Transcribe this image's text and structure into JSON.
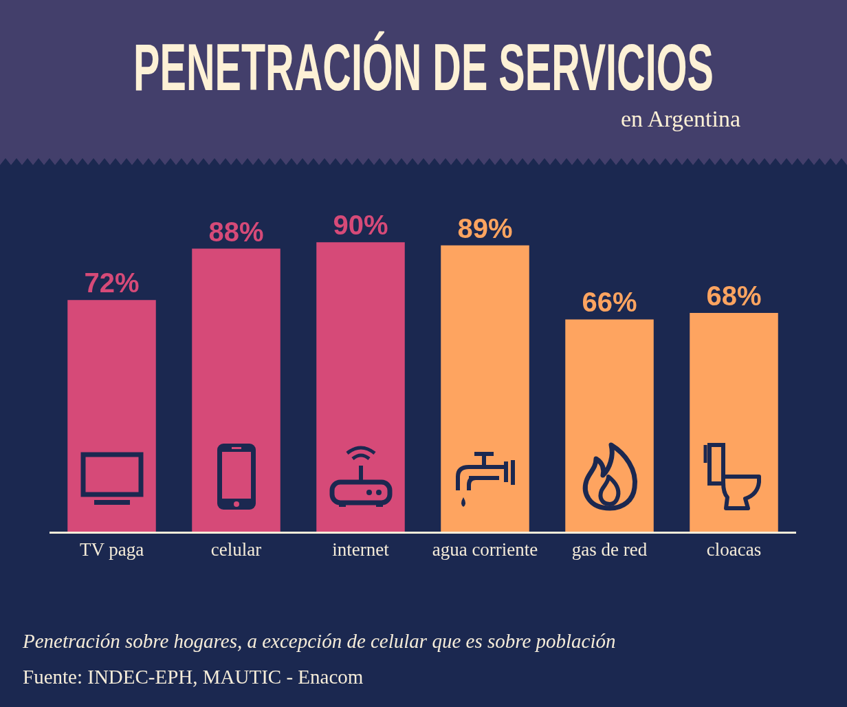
{
  "chart_data": {
    "type": "bar",
    "title": "PENETRACIÓN DE SERVICIOS",
    "subtitle": "en Argentina",
    "categories": [
      "TV paga",
      "celular",
      "internet",
      "agua corriente",
      "gas de red",
      "cloacas"
    ],
    "values": [
      72,
      88,
      90,
      89,
      66,
      68
    ],
    "colors": [
      "#d64a78",
      "#d64a78",
      "#d64a78",
      "#fea460",
      "#fea460",
      "#fea460"
    ],
    "value_labels": [
      "72%",
      "88%",
      "90%",
      "89%",
      "66%",
      "68%"
    ],
    "annotations": [
      "Penetración sobre hogares, a excepción de celular que es sobre población",
      "Fuente: INDEC-EPH, MAUTIC - Enacom"
    ]
  }
}
